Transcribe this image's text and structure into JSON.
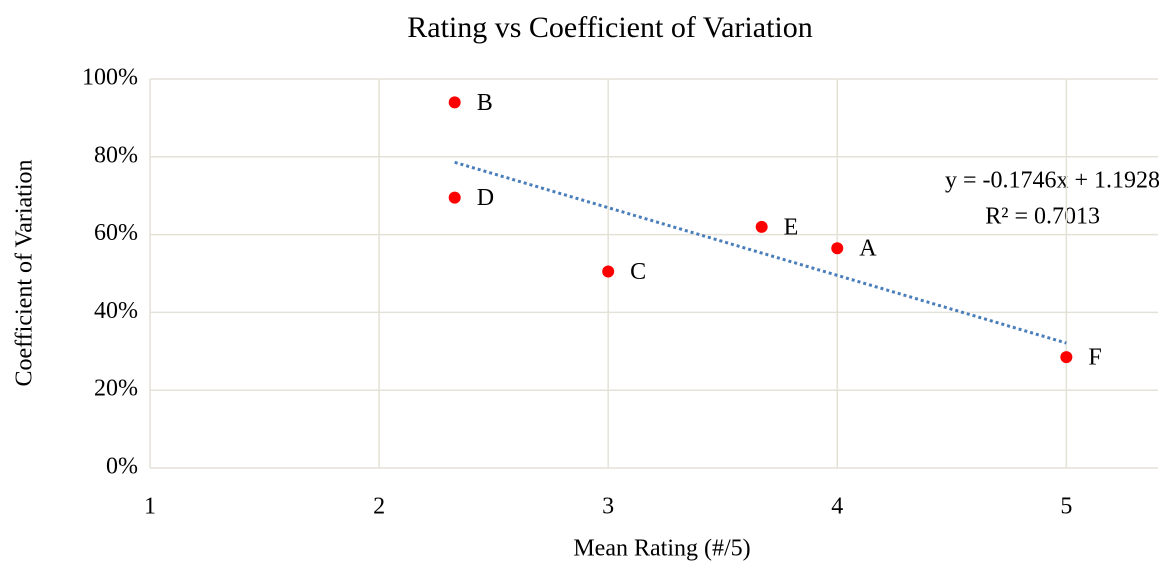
{
  "chart_data": {
    "type": "scatter",
    "title": "Rating vs Coefficient of Variation",
    "x_label": "Mean Rating (#/5)",
    "y_label": "Coefficient of Variation",
    "x": [
      2.33,
      2.33,
      3,
      3.67,
      4,
      5
    ],
    "values": [
      94,
      69.5,
      50.5,
      62,
      56.5,
      28.5
    ],
    "labels": [
      "B",
      "D",
      "C",
      "E",
      "A",
      "F"
    ],
    "color": "#ff0000",
    "trendline_color": "#4a7ebb",
    "annotations": [
      "y = -0.1746x + 1.1928",
      "R² = 0.7013"
    ],
    "xlim": [
      1,
      5.4
    ],
    "xticks": [
      1,
      2,
      3,
      4,
      5
    ],
    "ylim": [
      0,
      100
    ],
    "yticks": [
      {
        "value": 0,
        "label": "0%"
      },
      {
        "value": 20,
        "label": "20%"
      },
      {
        "value": 40,
        "label": "40%"
      },
      {
        "value": 60,
        "label": "60%"
      },
      {
        "value": 80,
        "label": "80%"
      },
      {
        "value": 100,
        "label": "100%"
      }
    ],
    "grid": true
  }
}
